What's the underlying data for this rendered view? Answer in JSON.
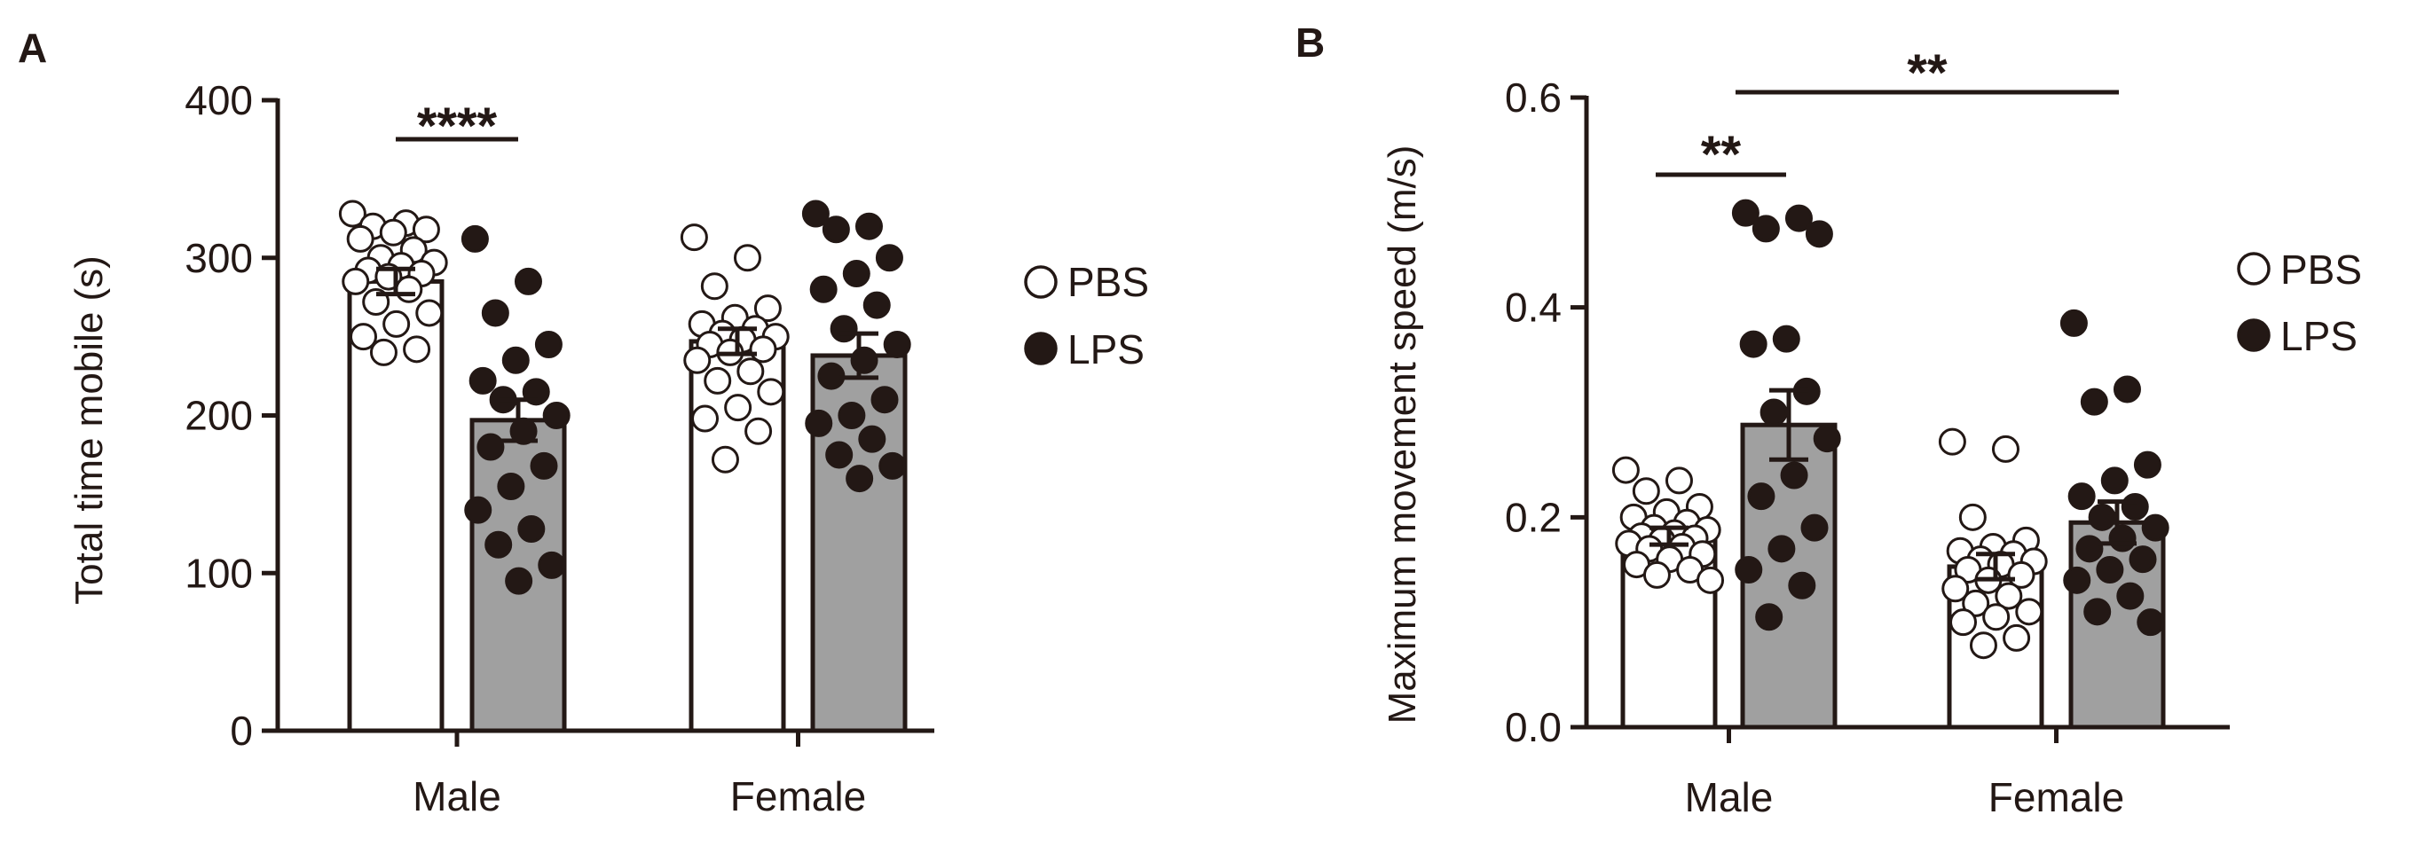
{
  "colors": {
    "ink": "#231815",
    "pbs_bar": "#ffffff",
    "lps_bar": "#a0a0a0"
  },
  "legend": {
    "pbs_label": "PBS",
    "lps_label": "LPS"
  },
  "chart_data": [
    {
      "type": "bar",
      "panel_label": "A",
      "title": "",
      "xlabel": "",
      "ylabel": "Total time mobile (s)",
      "ylim": [
        0,
        400
      ],
      "yticks": [
        "0",
        "100",
        "200",
        "300",
        "400"
      ],
      "yticks_values": [
        0,
        100,
        200,
        300,
        400
      ],
      "categories": [
        "Male",
        "Female"
      ],
      "legend_position": "right",
      "series": [
        {
          "name": "PBS",
          "values": [
            285,
            247
          ],
          "sem": [
            8,
            8
          ],
          "points": [
            [
              328,
              322,
              320,
              318,
              316,
              312,
              305,
              300,
              297,
              295,
              292,
              290,
              288,
              285,
              280,
              272,
              265,
              258,
              250,
              242,
              240
            ],
            [
              313,
              300,
              282,
              268,
              262,
              258,
              255,
              252,
              250,
              248,
              245,
              242,
              240,
              235,
              228,
              222,
              215,
              205,
              198,
              190,
              172
            ]
          ]
        },
        {
          "name": "LPS",
          "values": [
            197,
            238
          ],
          "sem": [
            13,
            14
          ],
          "points": [
            [
              312,
              285,
              265,
              245,
              235,
              222,
              215,
              210,
              200,
              190,
              180,
              168,
              155,
              140,
              128,
              118,
              105,
              95
            ],
            [
              328,
              320,
              318,
              300,
              290,
              280,
              270,
              255,
              245,
              235,
              225,
              210,
              200,
              195,
              185,
              175,
              168,
              160
            ]
          ]
        }
      ],
      "annotations": [
        {
          "text": "****",
          "between": "Male PBS vs Male LPS"
        }
      ]
    },
    {
      "type": "bar",
      "panel_label": "B",
      "title": "",
      "xlabel": "",
      "ylabel": "Maximum movement speed (m/s)",
      "ylim": [
        0,
        0.6
      ],
      "yticks": [
        "0.0",
        "0.2",
        "0.4",
        "0.6"
      ],
      "yticks_values": [
        0,
        0.2,
        0.4,
        0.6
      ],
      "categories": [
        "Male",
        "Female"
      ],
      "legend_position": "right",
      "series": [
        {
          "name": "PBS",
          "values": [
            0.182,
            0.153
          ],
          "sem": [
            0.008,
            0.012
          ],
          "points": [
            [
              0.245,
              0.235,
              0.225,
              0.21,
              0.205,
              0.2,
              0.195,
              0.19,
              0.188,
              0.185,
              0.182,
              0.18,
              0.178,
              0.175,
              0.172,
              0.17,
              0.165,
              0.16,
              0.155,
              0.15,
              0.145,
              0.14
            ],
            [
              0.272,
              0.265,
              0.2,
              0.178,
              0.172,
              0.168,
              0.165,
              0.16,
              0.158,
              0.155,
              0.15,
              0.145,
              0.14,
              0.132,
              0.125,
              0.118,
              0.11,
              0.105,
              0.1,
              0.085,
              0.078
            ]
          ]
        },
        {
          "name": "LPS",
          "values": [
            0.288,
            0.195
          ],
          "sem": [
            0.033,
            0.02
          ],
          "points": [
            [
              0.49,
              0.485,
              0.475,
              0.47,
              0.37,
              0.365,
              0.32,
              0.3,
              0.275,
              0.24,
              0.22,
              0.19,
              0.17,
              0.15,
              0.135,
              0.105
            ],
            [
              0.385,
              0.322,
              0.31,
              0.25,
              0.235,
              0.22,
              0.21,
              0.2,
              0.19,
              0.18,
              0.17,
              0.16,
              0.15,
              0.14,
              0.125,
              0.11,
              0.1
            ]
          ]
        }
      ],
      "annotations": [
        {
          "text": "**",
          "between": "Male PBS vs Male LPS"
        },
        {
          "text": "**",
          "between": "Male LPS vs Female LPS"
        }
      ]
    }
  ]
}
